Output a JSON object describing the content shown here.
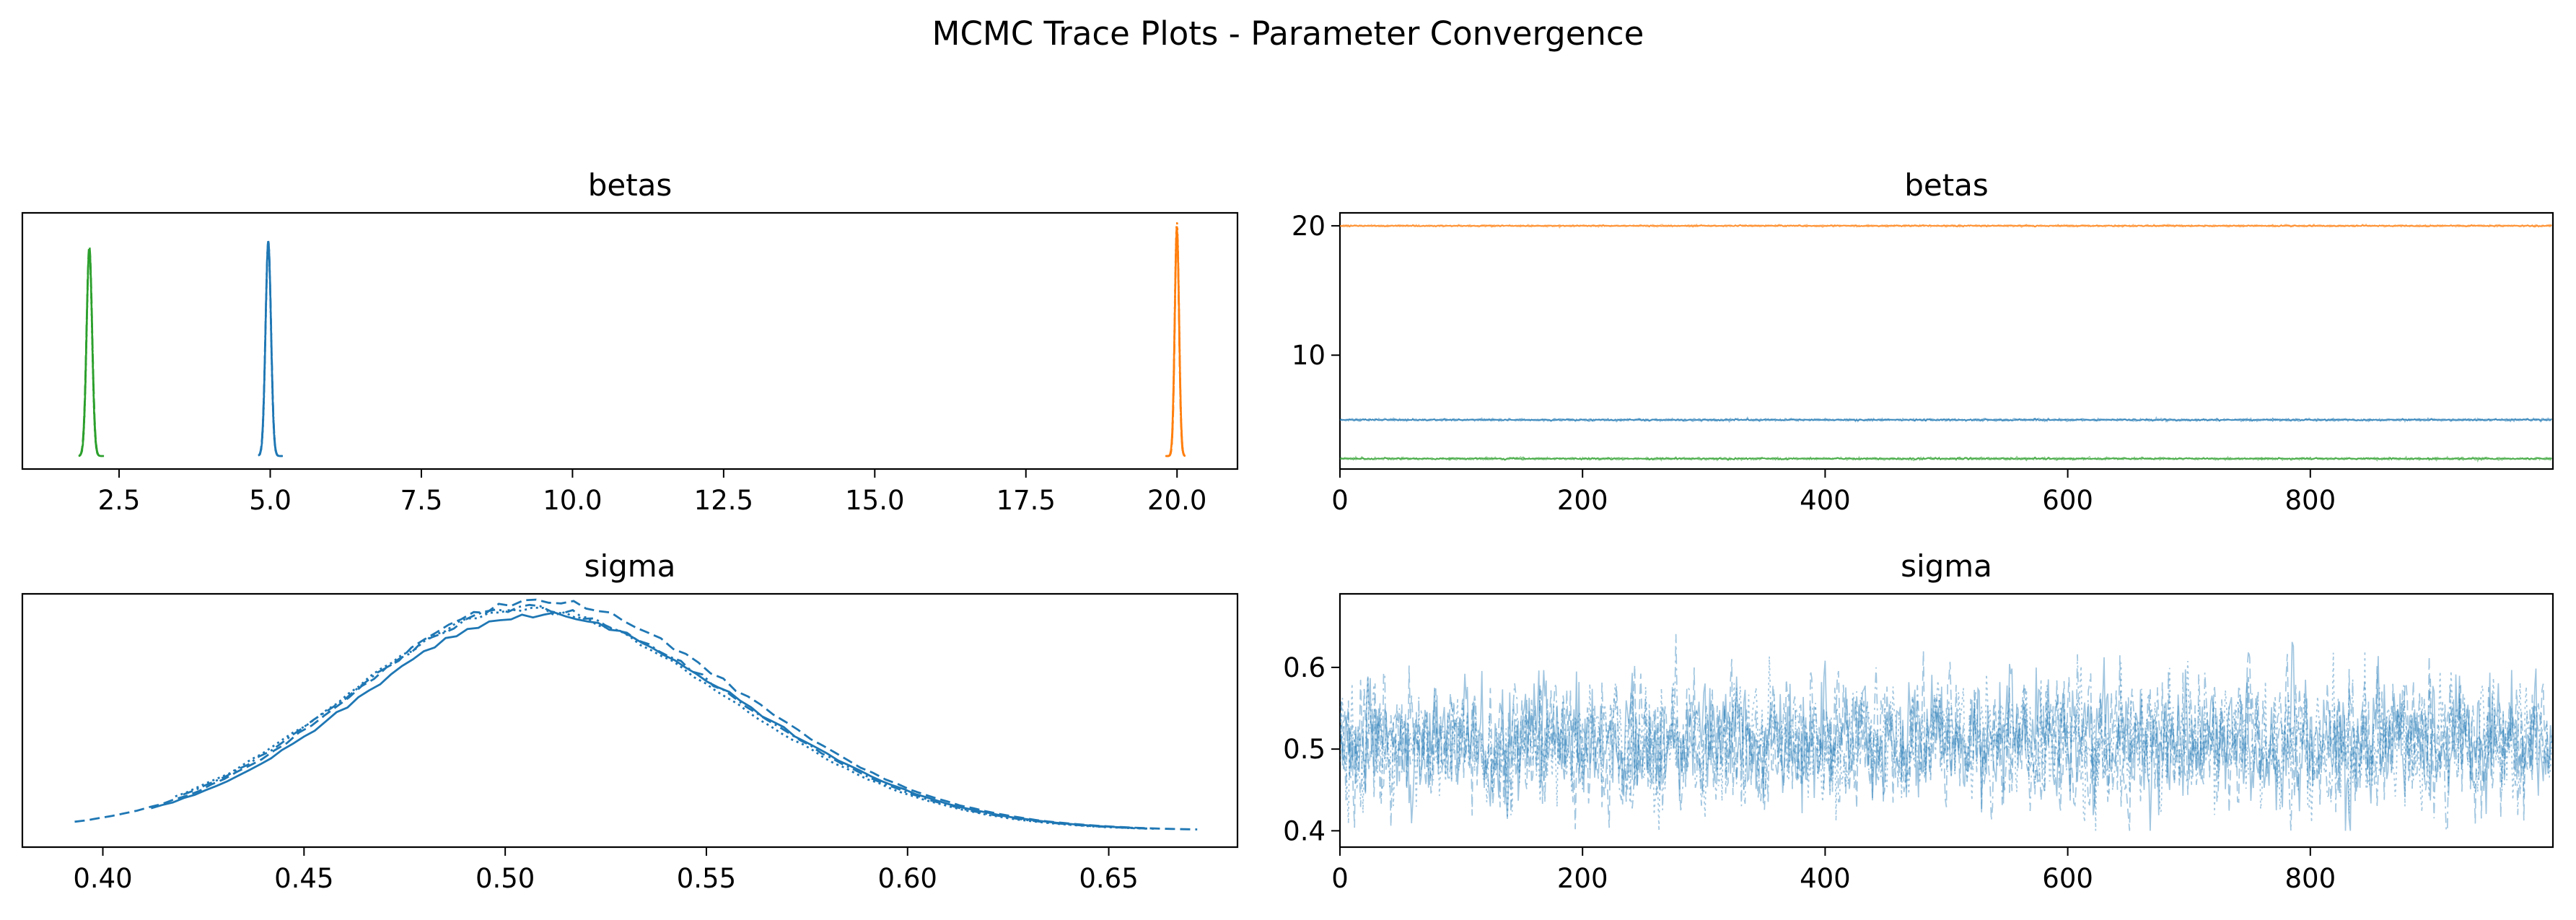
{
  "figure": {
    "title": "MCMC Trace Plots - Parameter Convergence"
  },
  "colors": {
    "c0": "#1f77b4",
    "c1": "#ff7f0e",
    "c2": "#2ca02c",
    "axis": "#000000",
    "background": "#ffffff"
  },
  "chart_data": [
    {
      "type": "line",
      "panel": "betas-density",
      "title": "betas",
      "xlabel": "",
      "ylabel": "",
      "xlim": [
        0.9,
        21.0
      ],
      "xticks": [
        2.5,
        5.0,
        7.5,
        10.0,
        12.5,
        15.0,
        17.5,
        20.0
      ],
      "xtick_labels": [
        "2.5",
        "5.0",
        "7.5",
        "10.0",
        "12.5",
        "15.0",
        "17.5",
        "20.0"
      ],
      "yticks": [],
      "grid": false,
      "series": [
        {
          "param": "beta[0]",
          "color": "c0",
          "peak_x": 4.97,
          "sd": 0.045,
          "x_range": [
            4.81,
            5.2
          ],
          "relative_peak": 0.91
        },
        {
          "param": "beta[1]",
          "color": "c1",
          "peak_x": 20.0,
          "sd": 0.035,
          "x_range": [
            19.82,
            20.14
          ],
          "relative_peak": 0.99
        },
        {
          "param": "beta[2]",
          "color": "c2",
          "peak_x": 2.01,
          "sd": 0.045,
          "x_range": [
            1.84,
            2.24
          ],
          "relative_peak": 0.89
        }
      ],
      "chains": 4
    },
    {
      "type": "line",
      "panel": "betas-trace",
      "title": "betas",
      "xlabel": "",
      "ylabel": "",
      "xlim": [
        0,
        1000
      ],
      "ylim": [
        1.2,
        21.0
      ],
      "xticks": [
        0,
        200,
        400,
        600,
        800
      ],
      "xtick_labels": [
        "0",
        "200",
        "400",
        "600",
        "800"
      ],
      "yticks": [
        10,
        20
      ],
      "ytick_labels": [
        "10",
        "20"
      ],
      "grid": false,
      "draws": 1000,
      "series": [
        {
          "param": "beta[0]",
          "color": "c0",
          "mean": 5.0,
          "sd": 0.045
        },
        {
          "param": "beta[1]",
          "color": "c1",
          "mean": 20.0,
          "sd": 0.035
        },
        {
          "param": "beta[2]",
          "color": "c2",
          "mean": 2.0,
          "sd": 0.045
        }
      ]
    },
    {
      "type": "line",
      "panel": "sigma-density",
      "title": "sigma",
      "xlabel": "",
      "ylabel": "",
      "xlim": [
        0.38,
        0.682
      ],
      "xticks": [
        0.4,
        0.45,
        0.5,
        0.55,
        0.6,
        0.65
      ],
      "xtick_labels": [
        "0.40",
        "0.45",
        "0.50",
        "0.55",
        "0.60",
        "0.65"
      ],
      "yticks": [],
      "grid": false,
      "series": [
        {
          "chain": 0,
          "color": "c0",
          "line_style": "solid",
          "mode": 0.508,
          "x_range": [
            0.412,
            0.656
          ],
          "relative_peak": 0.92
        },
        {
          "chain": 1,
          "color": "c0",
          "line_style": "dashed",
          "mode": 0.508,
          "x_range": [
            0.393,
            0.672
          ],
          "relative_peak": 0.98
        },
        {
          "chain": 2,
          "color": "c0",
          "line_style": "dotted",
          "mode": 0.505,
          "x_range": [
            0.418,
            0.66
          ],
          "relative_peak": 0.94
        },
        {
          "chain": 3,
          "color": "c0",
          "line_style": "dashdot",
          "mode": 0.506,
          "x_range": [
            0.42,
            0.662
          ],
          "relative_peak": 0.95
        }
      ]
    },
    {
      "type": "line",
      "panel": "sigma-trace",
      "title": "sigma",
      "xlabel": "",
      "ylabel": "",
      "xlim": [
        0,
        1000
      ],
      "ylim": [
        0.38,
        0.69
      ],
      "xticks": [
        0,
        200,
        400,
        600,
        800
      ],
      "xtick_labels": [
        "0",
        "200",
        "400",
        "600",
        "800"
      ],
      "yticks": [
        0.4,
        0.5,
        0.6
      ],
      "ytick_labels": [
        "0.4",
        "0.5",
        "0.6"
      ],
      "grid": false,
      "draws": 1000,
      "series": [
        {
          "chain": 0,
          "color": "c0",
          "line_style": "solid",
          "mean": 0.51,
          "sd": 0.038
        },
        {
          "chain": 1,
          "color": "c0",
          "line_style": "dashed",
          "mean": 0.51,
          "sd": 0.038
        },
        {
          "chain": 2,
          "color": "c0",
          "line_style": "dotted",
          "mean": 0.51,
          "sd": 0.038
        },
        {
          "chain": 3,
          "color": "c0",
          "line_style": "dashdot",
          "mean": 0.51,
          "sd": 0.038
        }
      ]
    }
  ]
}
